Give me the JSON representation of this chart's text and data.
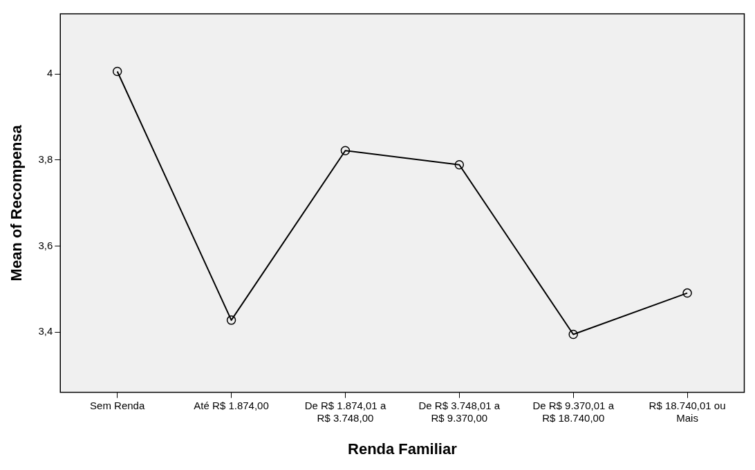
{
  "chart_data": {
    "type": "line",
    "xlabel": "Renda Familiar",
    "ylabel": "Mean of Recompensa",
    "categories": [
      "Sem Renda",
      "Até R$ 1.874,00",
      "De R$ 1.874,01 a R$ 3.748,00",
      "De R$ 3.748,01 a R$ 9.370,00",
      "De R$ 9.370,01 a R$ 18.740,00",
      "R$ 18.740,01 ou Mais"
    ],
    "series": [
      {
        "color": "#000000",
        "values": [
          4.006,
          3.428,
          3.822,
          3.789,
          3.395,
          3.491
        ]
      }
    ],
    "ylim": [
      3.26,
      4.14
    ],
    "yticks": [
      {
        "value": 3.4,
        "label": "3,4"
      },
      {
        "value": 3.6,
        "label": "3,6"
      },
      {
        "value": 3.8,
        "label": "3,8"
      },
      {
        "value": 4,
        "label": "4"
      }
    ],
    "grid": false,
    "legend": false,
    "marker": "circle",
    "line_style": "solid"
  }
}
